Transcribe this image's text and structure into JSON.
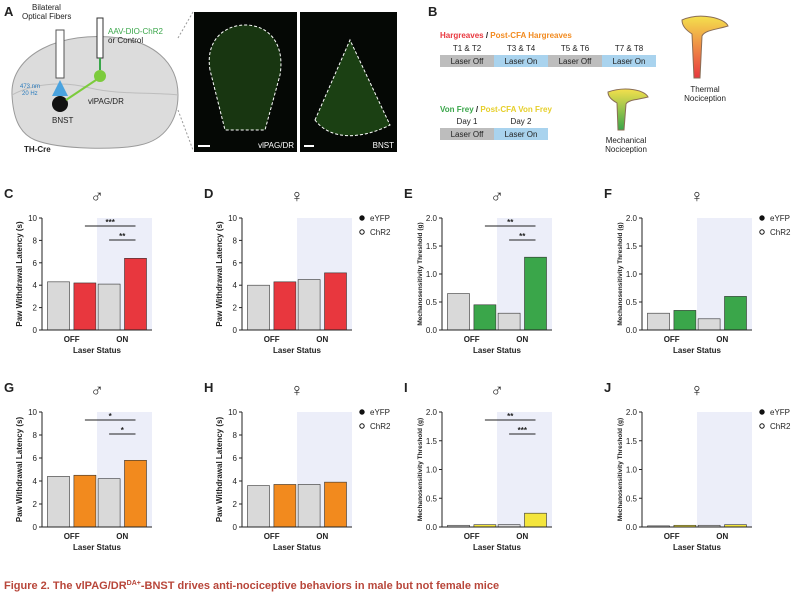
{
  "figure": {
    "panel_a": {
      "letter": "A",
      "fibers_1": "Bilateral",
      "fibers_2": "Optical Fibers",
      "virus": "AAV-DIO-ChR2",
      "control": "or Control",
      "laser": "473 nm",
      "freq": "20 Hz",
      "vlpag": "vlPAG/DR",
      "bnst": "BNST",
      "mouse": "TH-Cre",
      "image_1": "vlPAG/DR",
      "image_2": "BNST"
    },
    "panel_b": {
      "letter": "B",
      "thermal": "Hargreaves",
      "slash_1": "/",
      "thermal_cfa": "Post-CFA Hargreaves",
      "trials": [
        "T1 & T2",
        "T3 & T4",
        "T5 & T6",
        "T7 & T8"
      ],
      "trial_states": [
        "Laser Off",
        "Laser On",
        "Laser Off",
        "Laser On"
      ],
      "thermal_icon_1": "Thermal",
      "thermal_icon_2": "Nociception",
      "mechanical": "Von Frey",
      "slash_2": "/",
      "mechanical_cfa": "Post-CFA Von Frey",
      "days": [
        "Day 1",
        "Day 2"
      ],
      "day_states": [
        "Laser Off",
        "Laser On"
      ],
      "mech_icon_1": "Mechanical",
      "mech_icon_2": "Nociception"
    },
    "caption": {
      "label": "Figure 2.",
      "text_1": " The vlPAG/DR",
      "sup": "DA+",
      "text_2": "-BNST drives anti-nociceptive behaviors in male but not female mice"
    }
  },
  "chart_data": [
    {
      "type": "bar",
      "panel": "C",
      "symbol": "♂",
      "ylabel": "Paw Withdrawal Latency (s)",
      "xlabel": "Laser Status",
      "categories": [
        "OFF",
        "ON"
      ],
      "series": [
        {
          "color": "#d9d9d9",
          "values": [
            4.3,
            4.1
          ]
        },
        {
          "color": "#e8373e",
          "values": [
            4.2,
            6.4
          ]
        }
      ],
      "ylim": [
        0,
        10
      ],
      "yticks": [
        0,
        2,
        4,
        6,
        8,
        10
      ],
      "annotations": [
        "***",
        "**"
      ]
    },
    {
      "type": "bar",
      "panel": "D",
      "symbol": "♀",
      "ylabel": "Paw Withdrawal Latency (s)",
      "xlabel": "Laser Status",
      "categories": [
        "OFF",
        "ON"
      ],
      "series": [
        {
          "name": "eYFP",
          "color": "#d9d9d9",
          "values": [
            4.0,
            4.5
          ]
        },
        {
          "name": "ChR2",
          "color": "#e8373e",
          "values": [
            4.3,
            5.1
          ]
        }
      ],
      "ylim": [
        0,
        10
      ],
      "yticks": [
        0,
        2,
        4,
        6,
        8,
        10
      ],
      "annotations": []
    },
    {
      "type": "bar",
      "panel": "E",
      "symbol": "♂",
      "ylabel": "Mechanosensitivity Threshold (g)",
      "xlabel": "Laser Status",
      "categories": [
        "OFF",
        "ON"
      ],
      "series": [
        {
          "color": "#d9d9d9",
          "values": [
            0.65,
            0.3
          ]
        },
        {
          "color": "#3aa64a",
          "values": [
            0.45,
            1.3
          ]
        }
      ],
      "ylim": [
        0,
        2
      ],
      "yticks": [
        {
          "value": 0,
          "label": "0.0"
        },
        0.5,
        {
          "value": 1,
          "label": "1.0"
        },
        1.5,
        {
          "value": 2,
          "label": "2.0"
        }
      ],
      "annotations": [
        "**",
        "**"
      ]
    },
    {
      "type": "bar",
      "panel": "F",
      "symbol": "♀",
      "ylabel": "Mechanosensitivity Threshold (g)",
      "xlabel": "Laser Status",
      "categories": [
        "OFF",
        "ON"
      ],
      "series": [
        {
          "name": "eYFP",
          "color": "#d9d9d9",
          "values": [
            0.3,
            0.2
          ]
        },
        {
          "name": "ChR2",
          "color": "#3aa64a",
          "values": [
            0.35,
            0.6
          ]
        }
      ],
      "ylim": [
        0,
        2
      ],
      "yticks": [
        {
          "value": 0,
          "label": "0.0"
        },
        0.5,
        {
          "value": 1,
          "label": "1.0"
        },
        1.5,
        {
          "value": 2,
          "label": "2.0"
        }
      ],
      "annotations": []
    },
    {
      "type": "bar",
      "panel": "G",
      "symbol": "♂",
      "ylabel": "Paw Withdrawal Latency (s)",
      "xlabel": "Laser Status",
      "categories": [
        "OFF",
        "ON"
      ],
      "series": [
        {
          "color": "#d9d9d9",
          "values": [
            4.4,
            4.2
          ]
        },
        {
          "color": "#f28a1e",
          "values": [
            4.5,
            5.8
          ]
        }
      ],
      "ylim": [
        0,
        10
      ],
      "yticks": [
        0,
        2,
        4,
        6,
        8,
        10
      ],
      "annotations": [
        "*",
        "*"
      ]
    },
    {
      "type": "bar",
      "panel": "H",
      "symbol": "♀",
      "ylabel": "Paw Withdrawal Latency (s)",
      "xlabel": "Laser Status",
      "categories": [
        "OFF",
        "ON"
      ],
      "series": [
        {
          "name": "eYFP",
          "color": "#d9d9d9",
          "values": [
            3.6,
            3.7
          ]
        },
        {
          "name": "ChR2",
          "color": "#f28a1e",
          "values": [
            3.7,
            3.9
          ]
        }
      ],
      "ylim": [
        0,
        10
      ],
      "yticks": [
        0,
        2,
        4,
        6,
        8,
        10
      ],
      "annotations": []
    },
    {
      "type": "bar",
      "panel": "I",
      "symbol": "♂",
      "ylabel": "Mechanosensitivity Threshold (g)",
      "xlabel": "Laser Status",
      "categories": [
        "OFF",
        "ON"
      ],
      "series": [
        {
          "color": "#d9d9d9",
          "values": [
            0.03,
            0.04
          ]
        },
        {
          "color": "#f4e53c",
          "values": [
            0.04,
            0.24
          ]
        }
      ],
      "ylim": [
        0,
        2
      ],
      "yticks": [
        {
          "value": 0,
          "label": "0.0"
        },
        0.5,
        {
          "value": 1,
          "label": "1.0"
        },
        1.5,
        {
          "value": 2,
          "label": "2.0"
        }
      ],
      "annotations": [
        "**",
        "***"
      ]
    },
    {
      "type": "bar",
      "panel": "J",
      "symbol": "♀",
      "ylabel": "Mechanosensitivity Threshold (g)",
      "xlabel": "Laser Status",
      "categories": [
        "OFF",
        "ON"
      ],
      "series": [
        {
          "name": "eYFP",
          "color": "#d9d9d9",
          "values": [
            0.02,
            0.03
          ]
        },
        {
          "name": "ChR2",
          "color": "#f4e53c",
          "values": [
            0.03,
            0.04
          ]
        }
      ],
      "ylim": [
        0,
        2
      ],
      "yticks": [
        {
          "value": 0,
          "label": "0.0"
        },
        0.5,
        {
          "value": 1,
          "label": "1.0"
        },
        1.5,
        {
          "value": 2,
          "label": "2.0"
        }
      ],
      "annotations": []
    }
  ]
}
